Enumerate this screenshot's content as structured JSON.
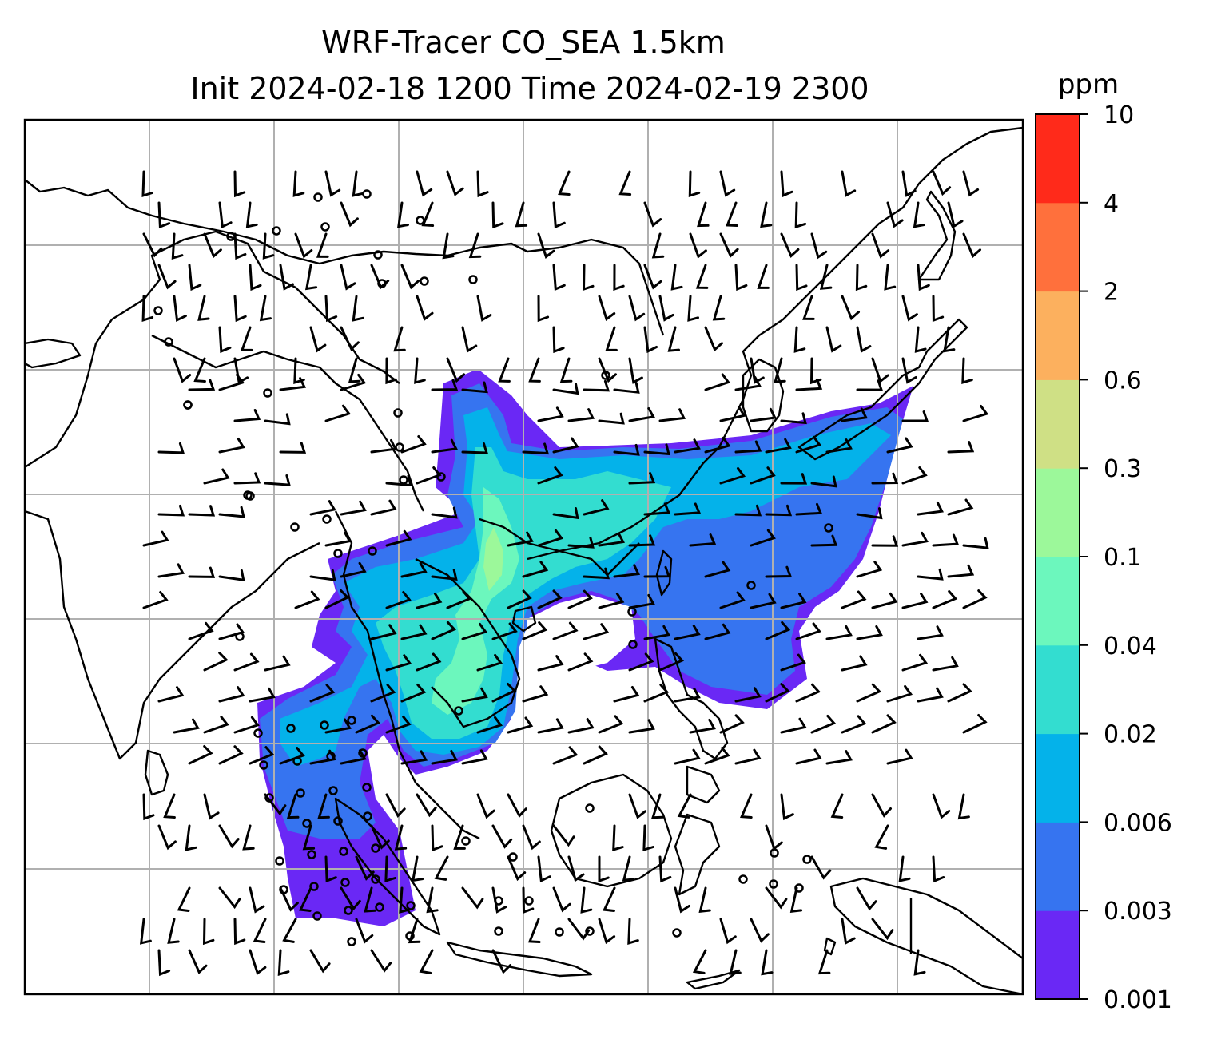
{
  "title": {
    "line1": "WRF-Tracer CO_SEA 1.5km",
    "line2": "Init 2024-02-18 1200 Time 2024-02-19 2300"
  },
  "colorbar": {
    "unit": "ppm",
    "levels": [
      "0.001",
      "0.003",
      "0.006",
      "0.02",
      "0.04",
      "0.1",
      "0.3",
      "0.6",
      "2",
      "4",
      "10"
    ],
    "colors": [
      "#6a28f5",
      "#3674f0",
      "#04b2ea",
      "#33ddd0",
      "#6cf7bd",
      "#9cf89a",
      "#cfe085",
      "#fcb05e",
      "#ff703c",
      "#ff2a1a"
    ]
  },
  "map": {
    "gridlines": true,
    "tracer_field": "CO_SEA",
    "wind_barbs": true
  }
}
